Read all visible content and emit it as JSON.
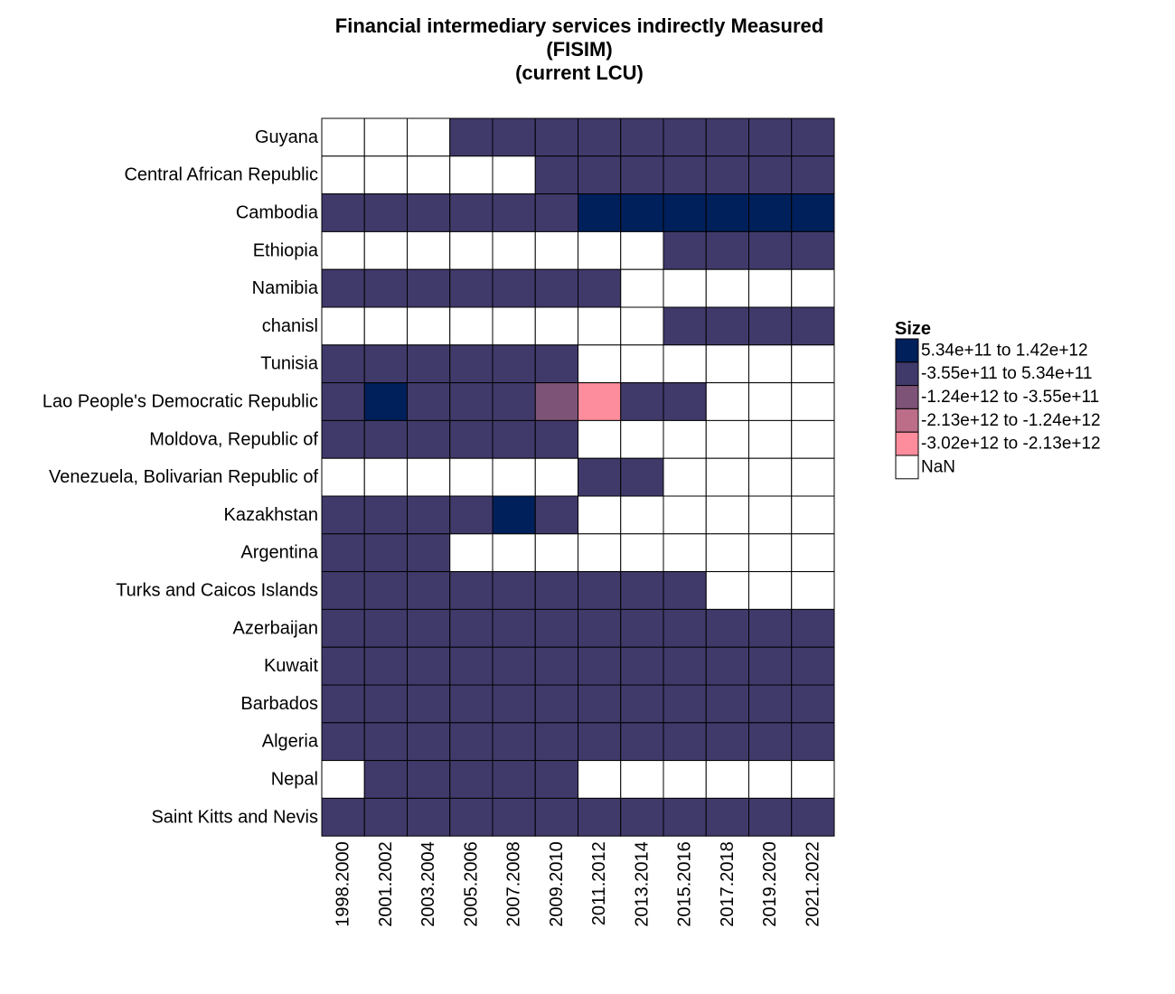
{
  "chart_data": {
    "type": "heatmap",
    "title": [
      "Financial intermediary services indirectly Measured",
      "(FISIM)",
      "(current LCU)"
    ],
    "legend": {
      "title": "Size",
      "placement": "right",
      "bins": [
        {
          "label": "5.34e+11 to 1.42e+12",
          "color": "#00205b"
        },
        {
          "label": "-3.55e+11 to 5.34e+11",
          "color": "#403a6b"
        },
        {
          "label": "-1.24e+12 to -3.55e+11",
          "color": "#7e5378"
        },
        {
          "label": "-2.13e+12 to -1.24e+12",
          "color": "#bc6e89"
        },
        {
          "label": "-3.02e+12 to -2.13e+12",
          "color": "#fd8d9c"
        },
        {
          "label": "NaN",
          "color": "#ffffff"
        }
      ]
    },
    "columns": [
      "1998.2000",
      "2001.2002",
      "2003.2004",
      "2005.2006",
      "2007.2008",
      "2009.2010",
      "2011.2012",
      "2013.2014",
      "2015.2016",
      "2017.2018",
      "2019.2020",
      "2021.2022"
    ],
    "rows": [
      "Guyana",
      "Central African Republic",
      "Cambodia",
      "Ethiopia",
      "Namibia",
      "chanisl",
      "Tunisia",
      "Lao People's Democratic Republic",
      "Moldova, Republic of",
      "Venezuela, Bolivarian Republic of",
      "Kazakhstan",
      "Argentina",
      "Turks and Caicos Islands",
      "Azerbaijan",
      "Kuwait",
      "Barbados",
      "Algeria",
      "Nepal",
      "Saint Kitts and Nevis"
    ],
    "bin_index": [
      [
        5,
        5,
        5,
        1,
        1,
        1,
        1,
        1,
        1,
        1,
        1,
        1
      ],
      [
        5,
        5,
        5,
        5,
        5,
        1,
        1,
        1,
        1,
        1,
        1,
        1
      ],
      [
        1,
        1,
        1,
        1,
        1,
        1,
        0,
        0,
        0,
        0,
        0,
        0
      ],
      [
        5,
        5,
        5,
        5,
        5,
        5,
        5,
        5,
        1,
        1,
        1,
        1
      ],
      [
        1,
        1,
        1,
        1,
        1,
        1,
        1,
        5,
        5,
        5,
        5,
        5
      ],
      [
        5,
        5,
        5,
        5,
        5,
        5,
        5,
        5,
        1,
        1,
        1,
        1
      ],
      [
        1,
        1,
        1,
        1,
        1,
        1,
        5,
        5,
        5,
        5,
        5,
        5
      ],
      [
        1,
        0,
        1,
        1,
        1,
        2,
        4,
        1,
        1,
        5,
        5,
        5
      ],
      [
        1,
        1,
        1,
        1,
        1,
        1,
        5,
        5,
        5,
        5,
        5,
        5
      ],
      [
        5,
        5,
        5,
        5,
        5,
        5,
        1,
        1,
        5,
        5,
        5,
        5
      ],
      [
        1,
        1,
        1,
        1,
        0,
        1,
        5,
        5,
        5,
        5,
        5,
        5
      ],
      [
        1,
        1,
        1,
        5,
        5,
        5,
        5,
        5,
        5,
        5,
        5,
        5
      ],
      [
        1,
        1,
        1,
        1,
        1,
        1,
        1,
        1,
        1,
        5,
        5,
        5
      ],
      [
        1,
        1,
        1,
        1,
        1,
        1,
        1,
        1,
        1,
        1,
        1,
        1
      ],
      [
        1,
        1,
        1,
        1,
        1,
        1,
        1,
        1,
        1,
        1,
        1,
        1
      ],
      [
        1,
        1,
        1,
        1,
        1,
        1,
        1,
        1,
        1,
        1,
        1,
        1
      ],
      [
        1,
        1,
        1,
        1,
        1,
        1,
        1,
        1,
        1,
        1,
        1,
        1
      ],
      [
        5,
        1,
        1,
        1,
        1,
        1,
        5,
        5,
        5,
        5,
        5,
        5
      ],
      [
        1,
        1,
        1,
        1,
        1,
        1,
        1,
        1,
        1,
        1,
        1,
        1
      ]
    ]
  }
}
